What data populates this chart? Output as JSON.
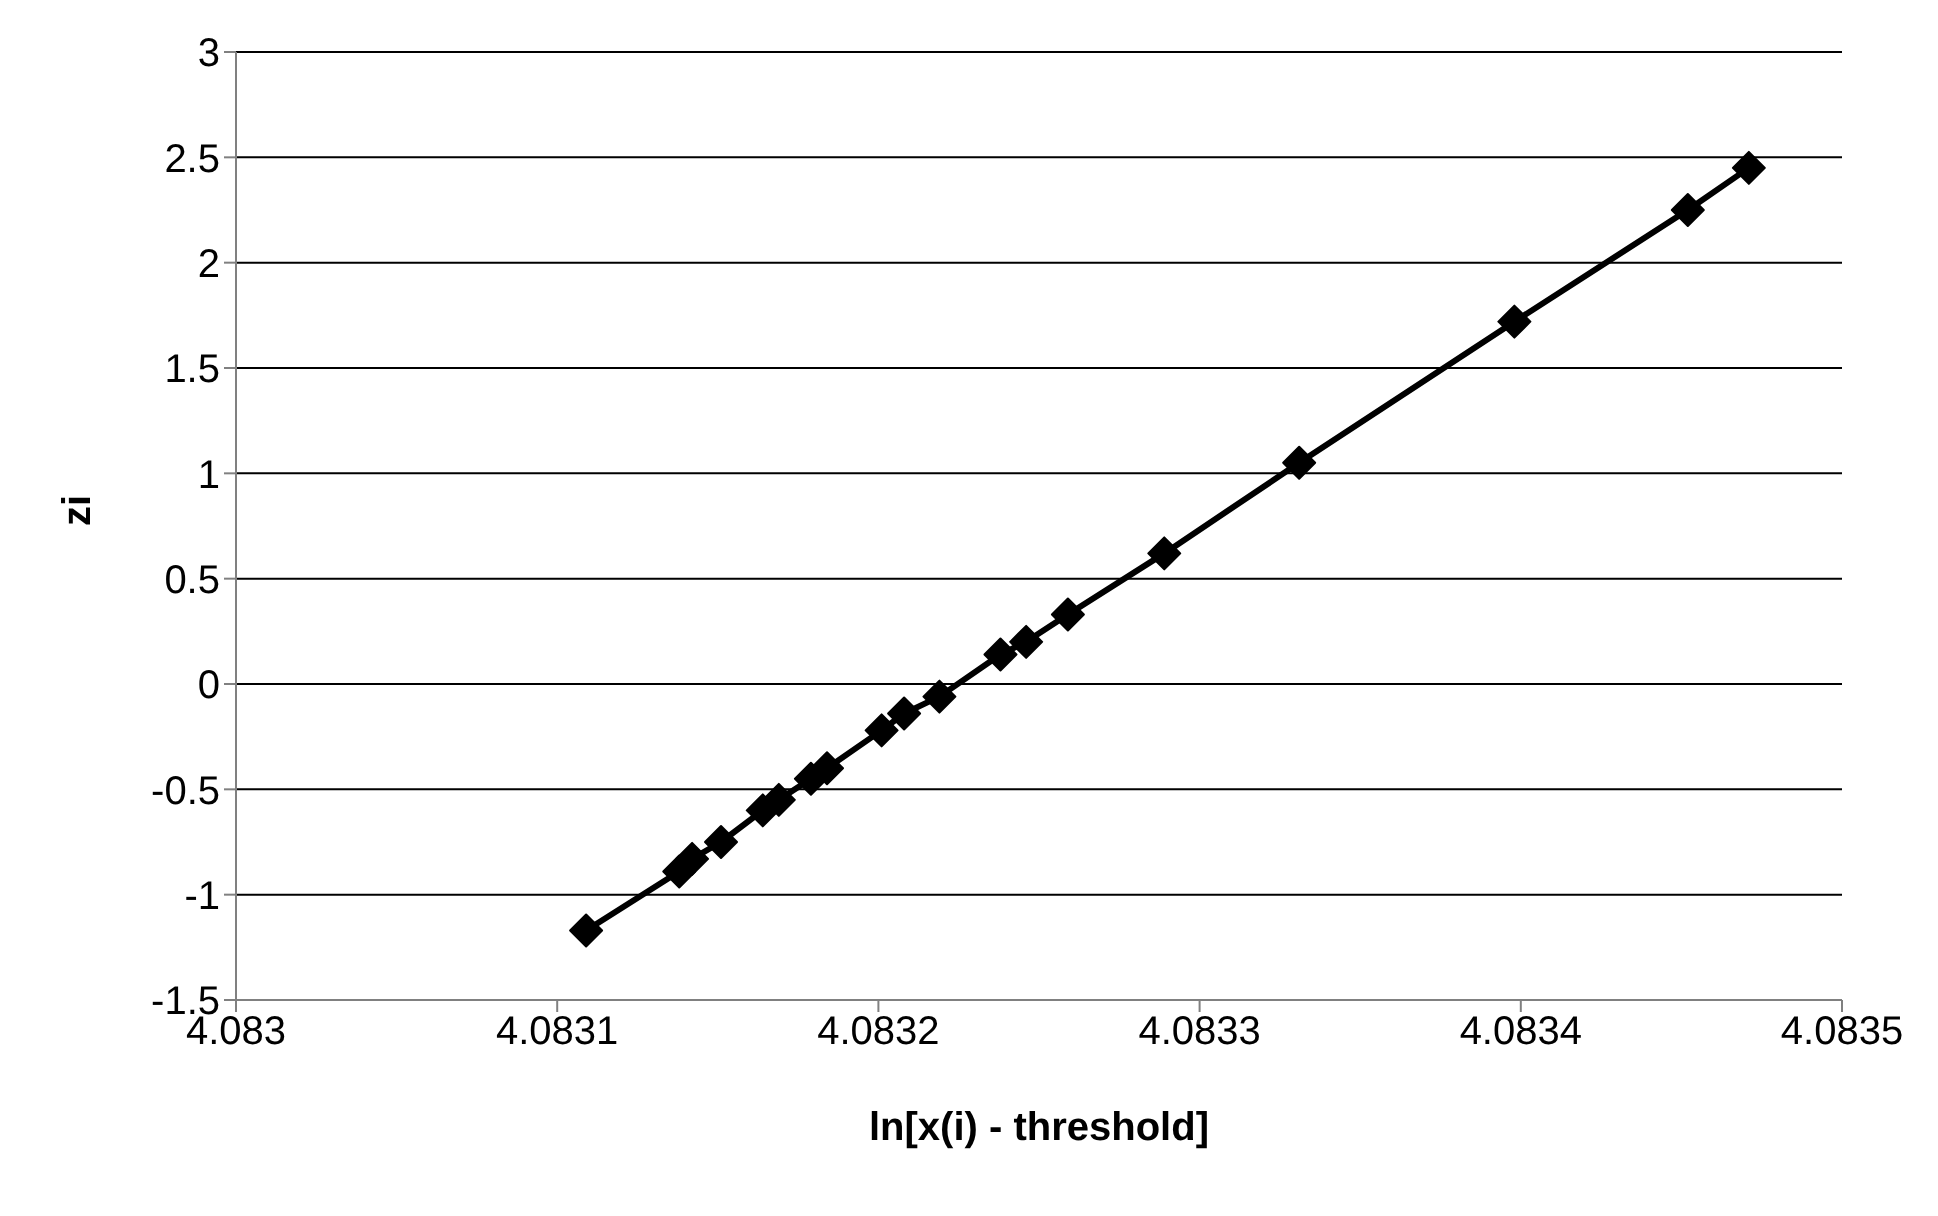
{
  "chart_data": {
    "type": "line",
    "xlabel": "ln[x(i) - threshold]",
    "ylabel": "zi",
    "x": [
      4.083109,
      4.083138,
      4.083142,
      4.083151,
      4.083164,
      4.083169,
      4.083179,
      4.083184,
      4.083201,
      4.083208,
      4.083219,
      4.083238,
      4.083246,
      4.083259,
      4.083289,
      4.083331,
      4.083398,
      4.083452,
      4.083471
    ],
    "series": [
      {
        "color": "#000000",
        "values": [
          -1.17,
          -0.89,
          -0.83,
          -0.75,
          -0.6,
          -0.55,
          -0.45,
          -0.4,
          -0.22,
          -0.14,
          -0.06,
          0.14,
          0.2,
          0.33,
          0.62,
          1.05,
          1.72,
          2.25,
          2.45
        ]
      }
    ],
    "xlim": [
      4.083,
      4.0835
    ],
    "xticks": [
      4.083,
      4.0831,
      4.0832,
      4.0833,
      4.0834,
      4.0835
    ],
    "ylim": [
      -1.5,
      3
    ],
    "yticks": [
      -1.5,
      -1,
      -0.5,
      0,
      0.5,
      1,
      1.5,
      2,
      2.5,
      3
    ],
    "grid": "y",
    "legend": false,
    "marker": "diamond",
    "line_style": "solid"
  }
}
